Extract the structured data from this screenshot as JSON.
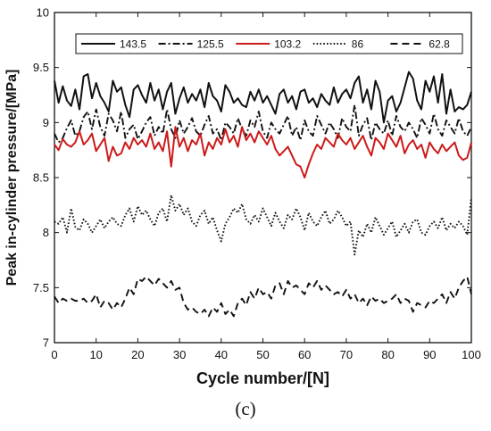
{
  "chart_data": {
    "type": "line",
    "xlabel": "Cycle number/[N]",
    "ylabel": "Peak in-cylinder pressure/[MPa]",
    "xlim": [
      0,
      100
    ],
    "ylim": [
      7,
      10
    ],
    "xticks": [
      "0",
      "10",
      "20",
      "30",
      "40",
      "50",
      "60",
      "70",
      "80",
      "90",
      "100"
    ],
    "yticks": [
      "7",
      "7.5",
      "8",
      "8.5",
      "9",
      "9.5",
      "10"
    ],
    "grid": false,
    "legend_position": "top",
    "series": [
      {
        "name": "143.5",
        "color": "#111111",
        "style": "solid",
        "values": [
          9.38,
          9.18,
          9.33,
          9.2,
          9.15,
          9.3,
          9.12,
          9.42,
          9.44,
          9.22,
          9.36,
          9.24,
          9.18,
          9.1,
          9.38,
          9.28,
          9.32,
          9.16,
          9.05,
          9.3,
          9.34,
          9.25,
          9.18,
          9.36,
          9.2,
          9.3,
          9.12,
          9.28,
          9.36,
          9.08,
          9.22,
          9.32,
          9.18,
          9.26,
          9.2,
          9.3,
          9.14,
          9.36,
          9.24,
          9.2,
          9.1,
          9.34,
          9.28,
          9.18,
          9.22,
          9.16,
          9.14,
          9.28,
          9.2,
          9.3,
          9.18,
          9.24,
          9.16,
          9.08,
          9.26,
          9.3,
          9.18,
          9.24,
          9.12,
          9.28,
          9.3,
          9.18,
          9.22,
          9.14,
          9.26,
          9.2,
          9.16,
          9.32,
          9.18,
          9.26,
          9.3,
          9.22,
          9.36,
          9.42,
          9.18,
          9.3,
          9.12,
          9.38,
          9.28,
          9.0,
          9.2,
          9.24,
          9.1,
          9.18,
          9.32,
          9.46,
          9.4,
          9.2,
          9.12,
          9.38,
          9.28,
          9.42,
          9.18,
          9.44,
          9.08,
          9.3,
          9.1,
          9.14,
          9.12,
          9.16,
          9.28
        ]
      },
      {
        "name": "125.5",
        "color": "#111111",
        "style": "dashdot",
        "values": [
          8.9,
          8.82,
          8.86,
          8.95,
          9.02,
          8.88,
          8.92,
          9.05,
          9.1,
          8.94,
          9.12,
          8.96,
          8.88,
          9.08,
          9.02,
          8.92,
          9.1,
          8.86,
          8.94,
          8.98,
          8.85,
          8.92,
          9.0,
          9.05,
          8.88,
          8.96,
          8.9,
          9.12,
          8.94,
          8.86,
          9.02,
          8.9,
          8.96,
          9.04,
          8.92,
          8.88,
          8.98,
          9.06,
          8.9,
          8.94,
          8.84,
          9.0,
          8.96,
          8.9,
          9.04,
          8.94,
          8.88,
          9.02,
          8.96,
          9.1,
          8.92,
          8.86,
          9.0,
          8.94,
          8.9,
          8.98,
          9.06,
          8.88,
          8.96,
          8.84,
          9.02,
          8.92,
          8.88,
          9.06,
          8.98,
          8.9,
          9.0,
          8.94,
          8.86,
          9.04,
          8.96,
          8.92,
          9.16,
          8.88,
          8.98,
          9.04,
          8.84,
          9.0,
          8.94,
          8.9,
          9.02,
          8.88,
          9.06,
          8.96,
          8.92,
          9.0,
          8.94,
          8.86,
          9.04,
          8.98,
          8.9,
          9.08,
          8.94,
          8.88,
          9.02,
          8.96,
          8.9,
          9.04,
          8.92,
          8.88,
          8.96
        ]
      },
      {
        "name": "103.2",
        "color": "#cc1a1a",
        "style": "solid",
        "values": [
          8.8,
          8.75,
          8.85,
          8.8,
          8.78,
          8.82,
          8.92,
          8.8,
          8.84,
          8.9,
          8.74,
          8.8,
          8.86,
          8.65,
          8.78,
          8.7,
          8.72,
          8.82,
          8.76,
          8.86,
          8.8,
          8.84,
          8.78,
          8.9,
          8.76,
          8.82,
          8.74,
          8.92,
          8.6,
          8.96,
          8.78,
          8.86,
          8.74,
          8.84,
          8.8,
          8.9,
          8.7,
          8.82,
          8.76,
          8.86,
          8.8,
          8.94,
          8.82,
          8.88,
          8.78,
          8.96,
          8.84,
          8.9,
          8.82,
          8.92,
          8.86,
          8.8,
          8.88,
          8.76,
          8.7,
          8.74,
          8.78,
          8.7,
          8.62,
          8.6,
          8.5,
          8.62,
          8.72,
          8.8,
          8.76,
          8.86,
          8.82,
          8.78,
          8.9,
          8.84,
          8.8,
          8.86,
          8.76,
          8.82,
          8.88,
          8.78,
          8.7,
          8.86,
          8.82,
          8.76,
          8.9,
          8.84,
          8.78,
          8.88,
          8.72,
          8.8,
          8.84,
          8.76,
          8.8,
          8.68,
          8.82,
          8.76,
          8.72,
          8.8,
          8.74,
          8.78,
          8.82,
          8.7,
          8.66,
          8.68,
          8.82
        ]
      },
      {
        "name": "86",
        "color": "#111111",
        "style": "dotted",
        "values": [
          8.1,
          8.08,
          8.14,
          8.0,
          8.22,
          8.05,
          8.02,
          8.12,
          8.08,
          8.0,
          8.06,
          8.12,
          8.04,
          8.1,
          8.14,
          8.08,
          8.06,
          8.16,
          8.22,
          8.1,
          8.24,
          8.16,
          8.2,
          8.12,
          8.06,
          8.18,
          8.22,
          8.1,
          8.34,
          8.2,
          8.26,
          8.16,
          8.22,
          8.1,
          8.06,
          8.16,
          8.2,
          8.08,
          8.14,
          8.02,
          7.92,
          8.08,
          8.14,
          8.22,
          8.18,
          8.26,
          8.12,
          8.08,
          8.16,
          8.1,
          8.22,
          8.14,
          8.06,
          8.18,
          8.1,
          8.04,
          8.16,
          8.12,
          8.22,
          8.14,
          8.02,
          8.18,
          8.1,
          8.06,
          8.14,
          8.2,
          8.08,
          8.12,
          8.2,
          8.14,
          8.06,
          8.1,
          7.8,
          8.02,
          7.96,
          8.08,
          8.0,
          8.14,
          8.06,
          7.98,
          8.04,
          8.1,
          7.96,
          8.02,
          8.08,
          8.0,
          8.1,
          8.12,
          8.0,
          7.98,
          8.06,
          8.1,
          8.04,
          8.14,
          8.02,
          8.08,
          8.04,
          8.1,
          8.06,
          7.98,
          8.32
        ]
      },
      {
        "name": "62.8",
        "color": "#111111",
        "style": "dashed",
        "values": [
          7.42,
          7.36,
          7.4,
          7.38,
          7.4,
          7.38,
          7.38,
          7.4,
          7.36,
          7.38,
          7.44,
          7.32,
          7.38,
          7.36,
          7.3,
          7.36,
          7.32,
          7.4,
          7.5,
          7.44,
          7.58,
          7.56,
          7.6,
          7.56,
          7.52,
          7.58,
          7.54,
          7.5,
          7.56,
          7.48,
          7.5,
          7.36,
          7.3,
          7.32,
          7.28,
          7.26,
          7.3,
          7.24,
          7.32,
          7.28,
          7.36,
          7.26,
          7.3,
          7.24,
          7.36,
          7.4,
          7.34,
          7.46,
          7.4,
          7.5,
          7.44,
          7.46,
          7.4,
          7.52,
          7.54,
          7.44,
          7.56,
          7.5,
          7.52,
          7.48,
          7.44,
          7.54,
          7.5,
          7.56,
          7.48,
          7.52,
          7.48,
          7.44,
          7.46,
          7.42,
          7.48,
          7.4,
          7.44,
          7.36,
          7.4,
          7.34,
          7.42,
          7.38,
          7.4,
          7.36,
          7.38,
          7.4,
          7.44,
          7.36,
          7.4,
          7.38,
          7.28,
          7.36,
          7.34,
          7.32,
          7.38,
          7.36,
          7.4,
          7.44,
          7.36,
          7.46,
          7.4,
          7.5,
          7.56,
          7.6,
          7.44
        ]
      }
    ]
  },
  "panel_label": "(c)"
}
